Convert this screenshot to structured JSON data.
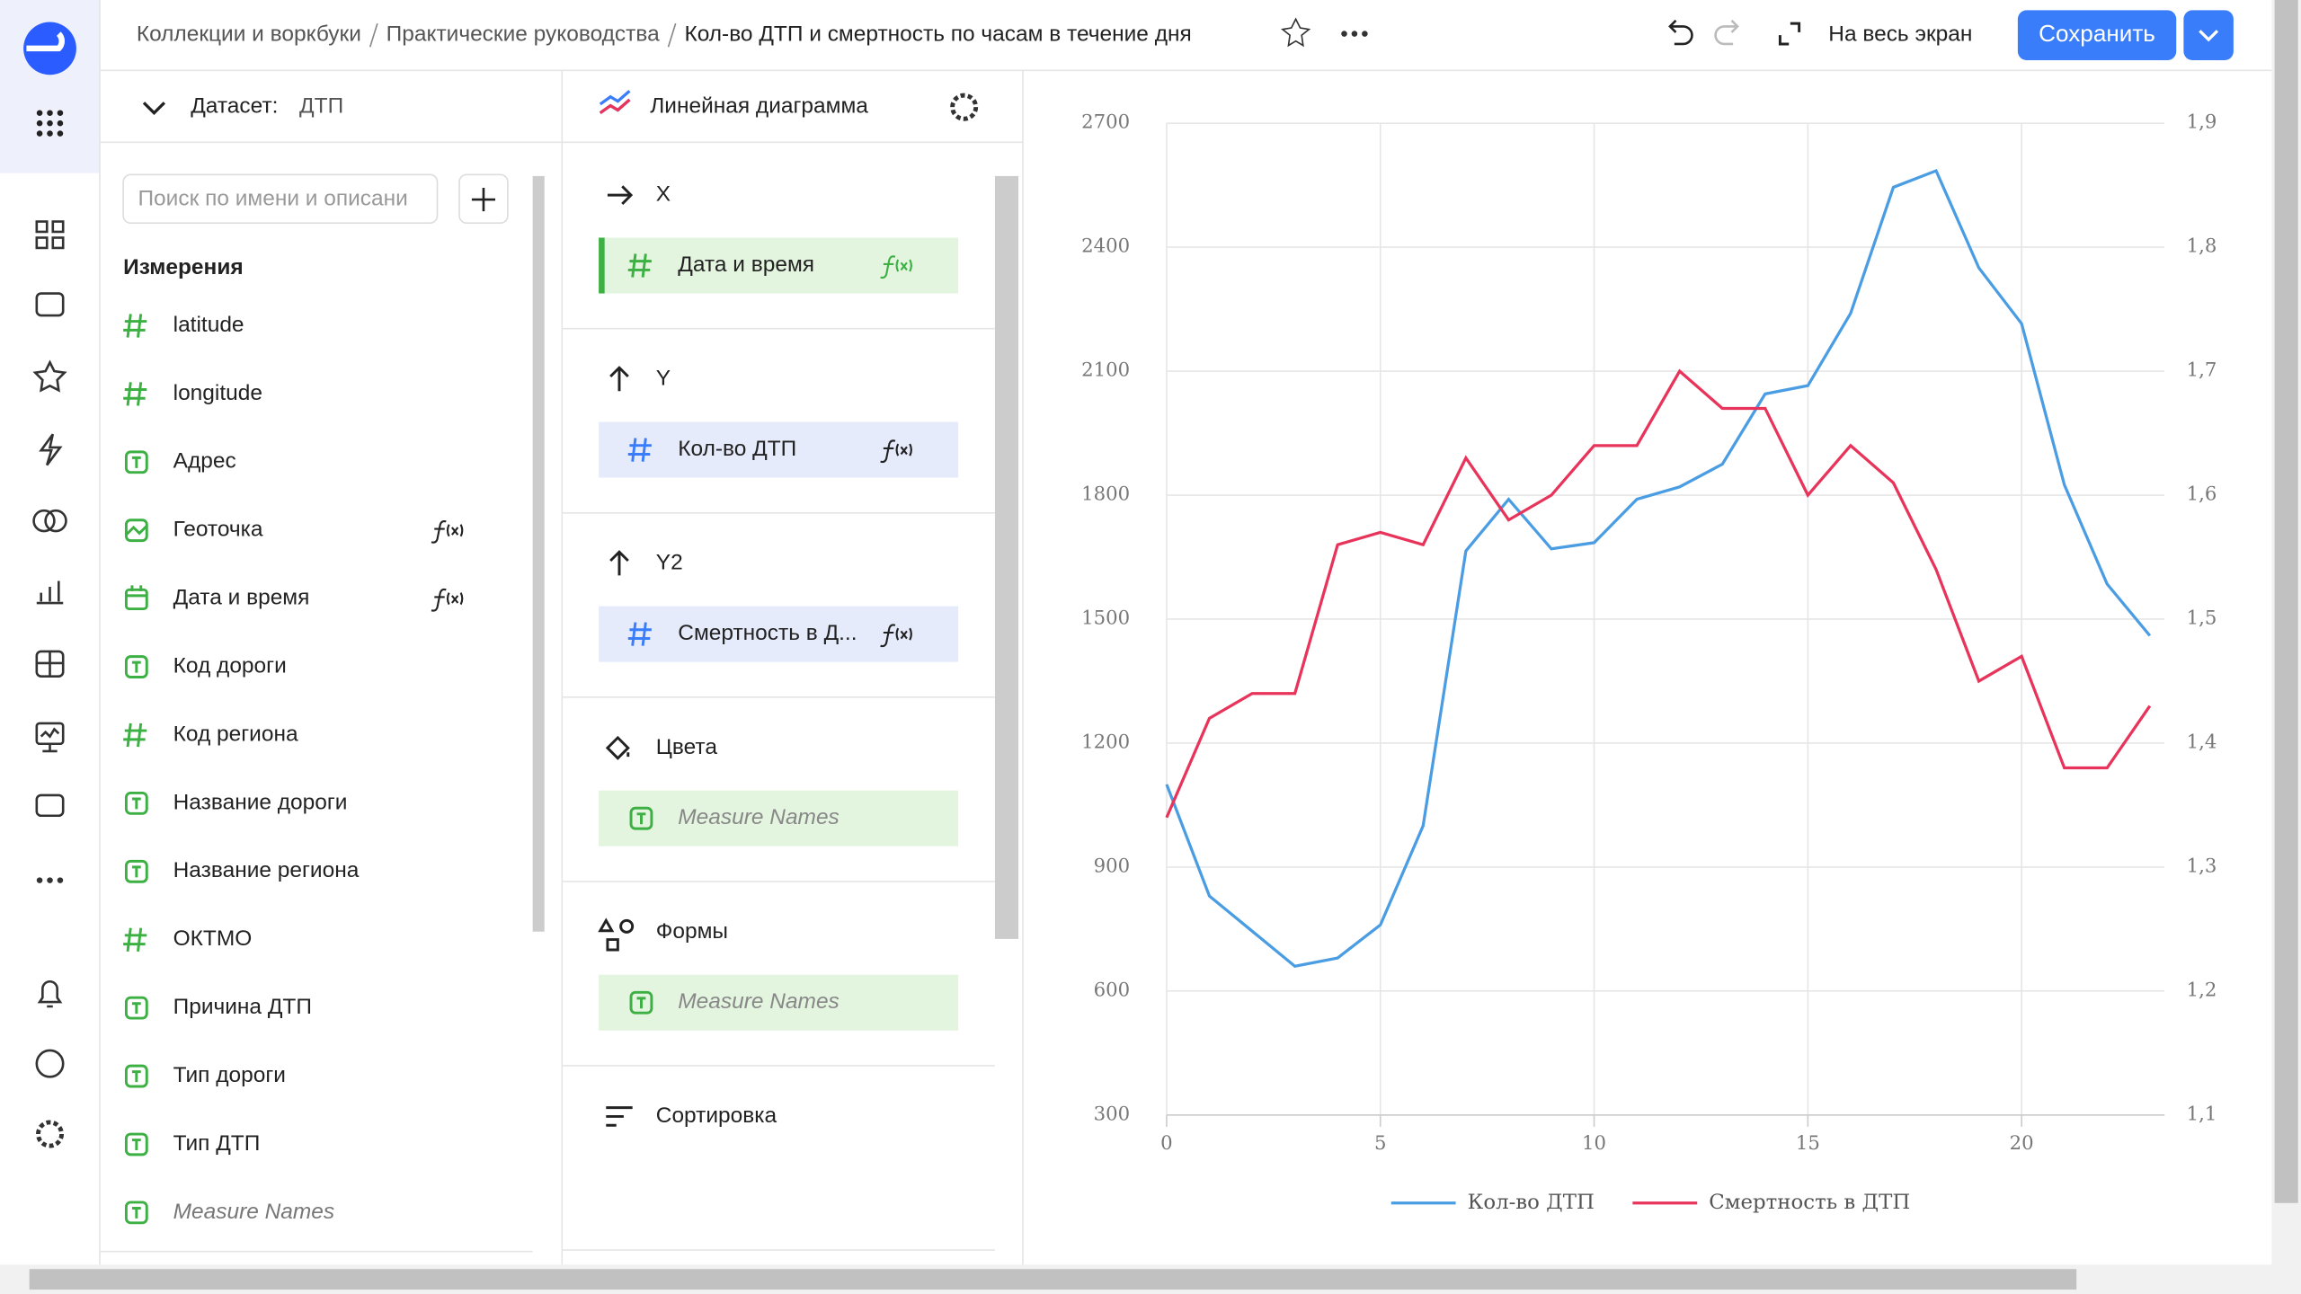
{
  "header": {
    "breadcrumbs": [
      "Коллекции и воркбуки",
      "Практические руководства",
      "Кол-во ДТП и смертность по часам в течение дня"
    ],
    "fullscreen": "На весь экран",
    "save": "Сохранить"
  },
  "dataset": {
    "label": "Датасет:",
    "name": "ДТП",
    "search_placeholder": "Поиск по имени и описани",
    "section": "Измерения",
    "fields": [
      {
        "name": "latitude",
        "kind": "number"
      },
      {
        "name": "longitude",
        "kind": "number"
      },
      {
        "name": "Адрес",
        "kind": "text"
      },
      {
        "name": "Геоточка",
        "kind": "geo",
        "formula": true
      },
      {
        "name": "Дата и время",
        "kind": "date",
        "formula": true
      },
      {
        "name": "Код дороги",
        "kind": "text"
      },
      {
        "name": "Код региона",
        "kind": "number"
      },
      {
        "name": "Название дороги",
        "kind": "text"
      },
      {
        "name": "Название региона",
        "kind": "text"
      },
      {
        "name": "ОКТМО",
        "kind": "number"
      },
      {
        "name": "Причина ДТП",
        "kind": "text"
      },
      {
        "name": "Тип дороги",
        "kind": "text"
      },
      {
        "name": "Тип ДТП",
        "kind": "text"
      },
      {
        "name": "Measure Names",
        "kind": "text",
        "italic": true
      }
    ]
  },
  "wizard": {
    "visualization": "Линейная диаграмма",
    "sections": [
      {
        "title": "X",
        "icon": "right",
        "item": {
          "name": "Дата и время",
          "kind": "number",
          "formula": true,
          "color": "green"
        }
      },
      {
        "title": "Y",
        "icon": "up",
        "item": {
          "name": "Кол-во ДТП",
          "kind": "number",
          "formula": true,
          "color": "blue"
        }
      },
      {
        "title": "Y2",
        "icon": "up",
        "item": {
          "name": "Смертность в Д...",
          "kind": "number",
          "formula": true,
          "color": "blue"
        }
      },
      {
        "title": "Цвета",
        "icon": "paint",
        "item": {
          "name": "Measure Names",
          "kind": "text",
          "italic": true,
          "color": "green"
        }
      },
      {
        "title": "Формы",
        "icon": "shapes",
        "item": {
          "name": "Measure Names",
          "kind": "text",
          "italic": true,
          "color": "green"
        }
      },
      {
        "title": "Сортировка",
        "icon": "sort"
      }
    ]
  },
  "chart_data": {
    "type": "line",
    "x": [
      0,
      1,
      2,
      3,
      4,
      5,
      6,
      7,
      8,
      9,
      10,
      11,
      12,
      13,
      14,
      15,
      16,
      17,
      18,
      19,
      20,
      21,
      22,
      23
    ],
    "xlim": [
      0,
      23
    ],
    "xticks": [
      0,
      5,
      10,
      15,
      20
    ],
    "ylim": [
      300,
      2700
    ],
    "yticks": [
      300,
      600,
      900,
      1200,
      1500,
      1800,
      2100,
      2400,
      2700
    ],
    "y2lim": [
      1.1,
      1.9
    ],
    "y2ticks": [
      {
        "value": 1.1,
        "label": "1,1"
      },
      {
        "value": 1.2,
        "label": "1,2"
      },
      {
        "value": 1.3,
        "label": "1,3"
      },
      {
        "value": 1.4,
        "label": "1,4"
      },
      {
        "value": 1.5,
        "label": "1,5"
      },
      {
        "value": 1.6,
        "label": "1,6"
      },
      {
        "value": 1.7,
        "label": "1,7"
      },
      {
        "value": 1.8,
        "label": "1,8"
      },
      {
        "value": 1.9,
        "label": "1,9"
      }
    ],
    "grid": true,
    "legend": "bottom",
    "series": [
      {
        "name": "Кол-во ДТП",
        "color": "#4a9de2",
        "values": [
          1100,
          830,
          745,
          660,
          680,
          760,
          1000,
          1665,
          1790,
          1670,
          1685,
          1790,
          1820,
          1875,
          2045,
          2065,
          2240,
          2545,
          2585,
          2350,
          2215,
          1825,
          1585,
          1460
        ]
      },
      {
        "name": "Смертность в ДТП",
        "color": "#e8335a",
        "axis": "y2",
        "values": [
          1.34,
          1.42,
          1.44,
          1.44,
          1.56,
          1.57,
          1.56,
          1.63,
          1.58,
          1.6,
          1.64,
          1.64,
          1.7,
          1.67,
          1.67,
          1.6,
          1.64,
          1.61,
          1.54,
          1.45,
          1.47,
          1.38,
          1.38,
          1.43
        ]
      }
    ]
  }
}
